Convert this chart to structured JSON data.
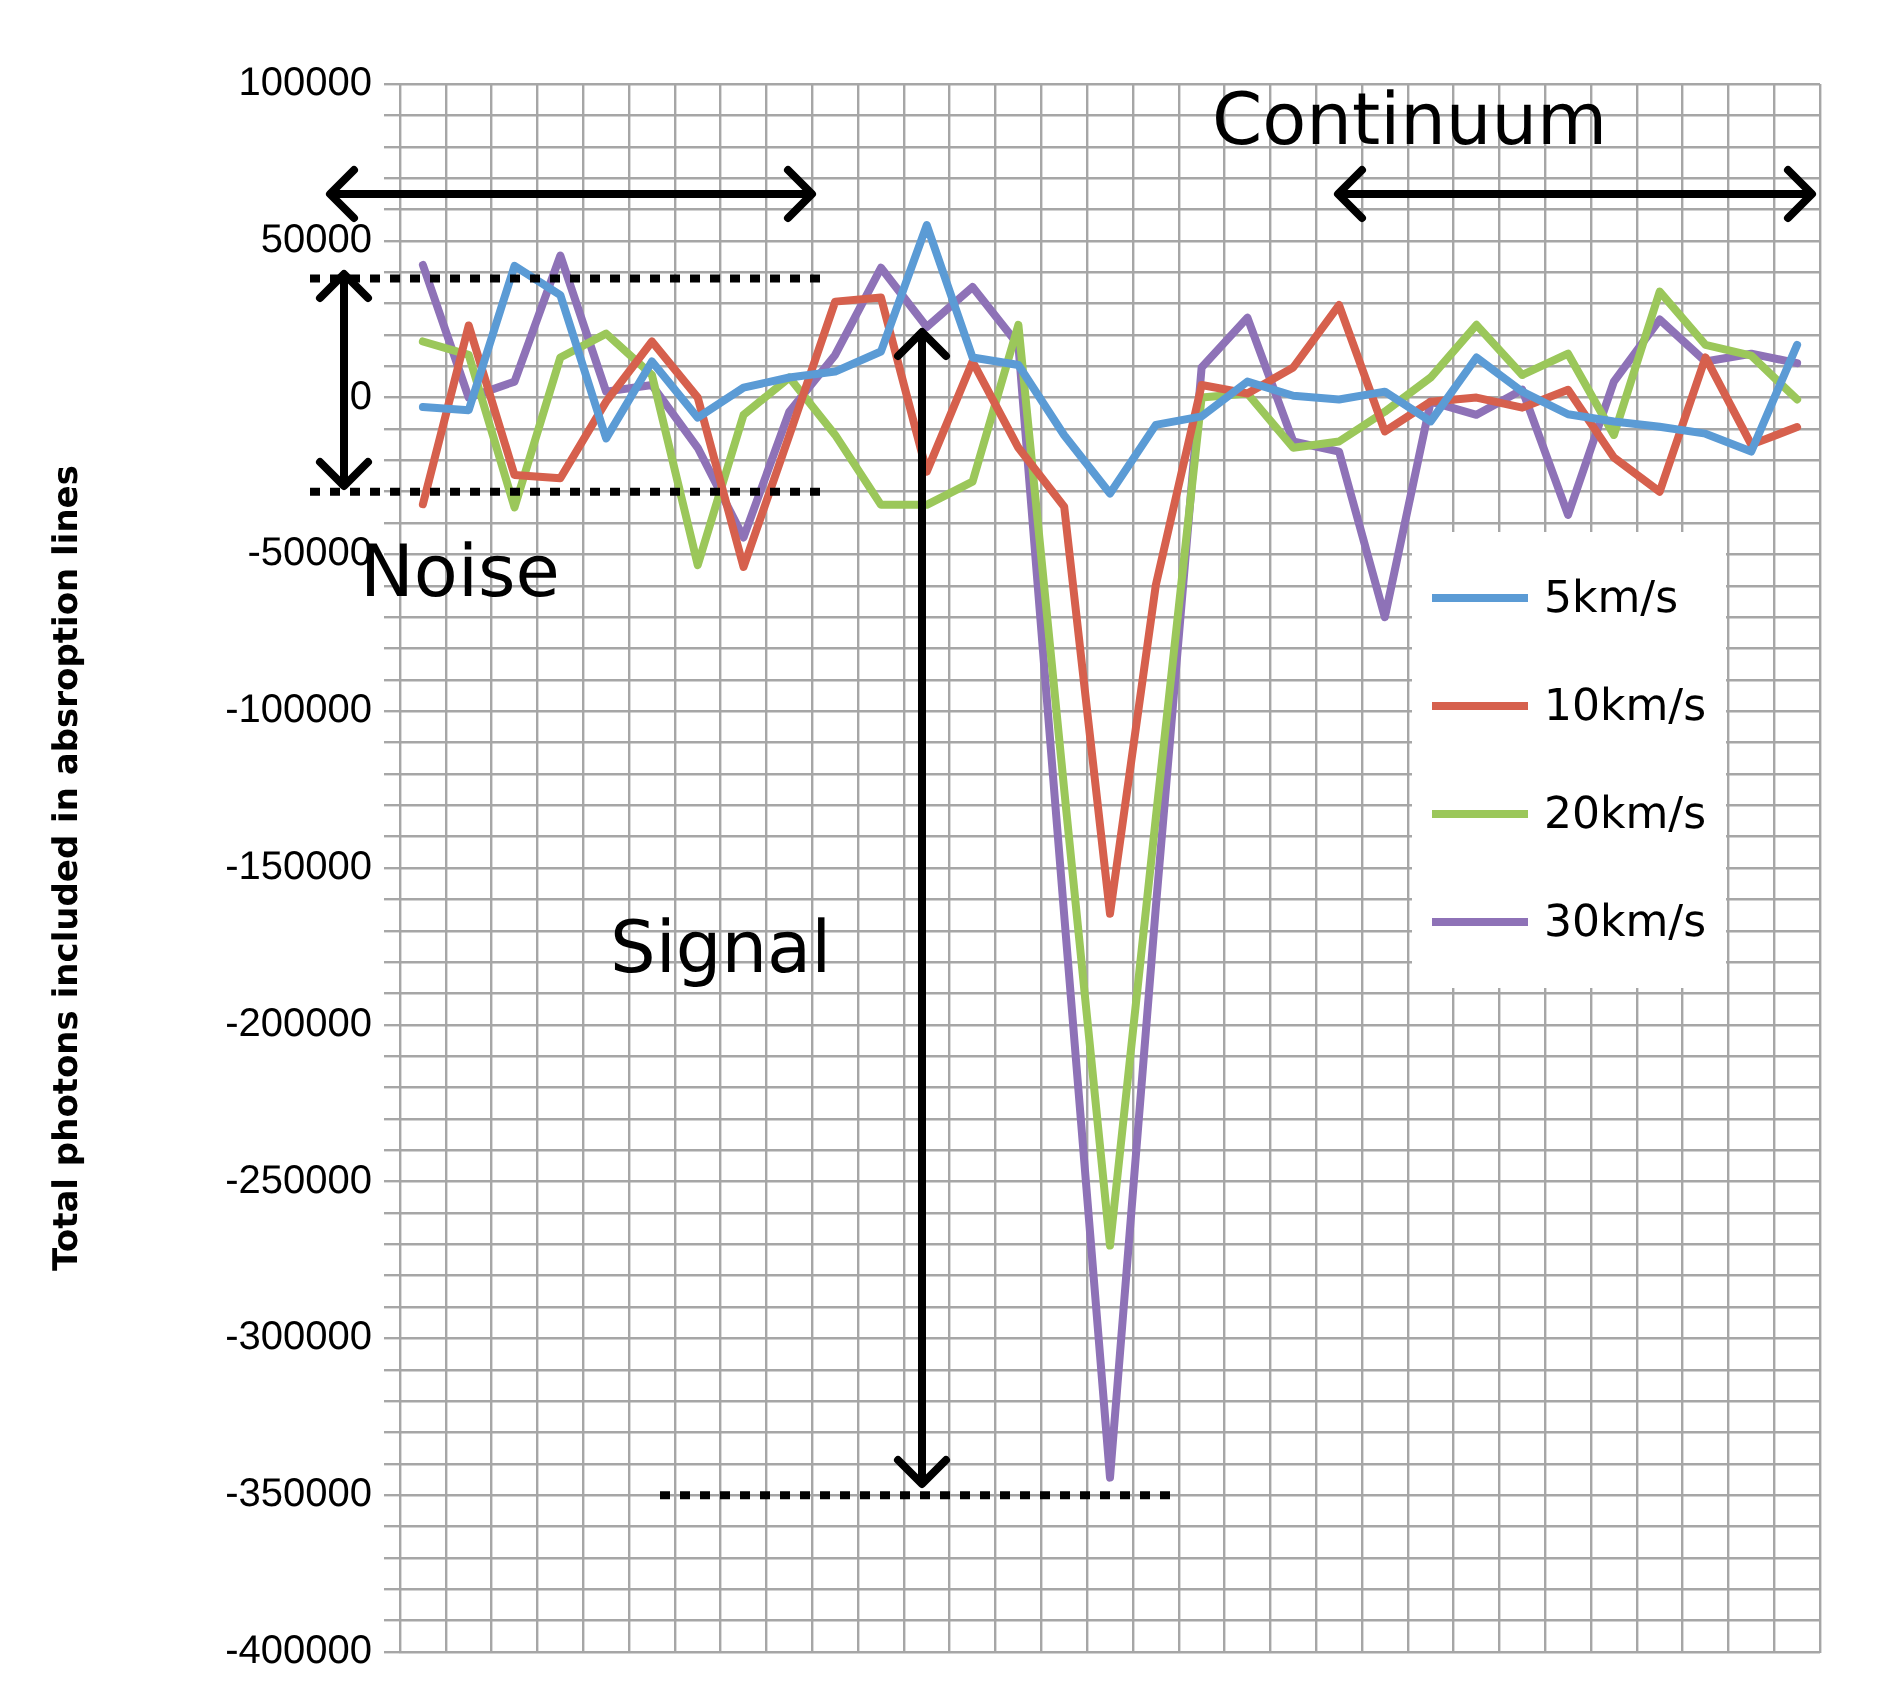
{
  "chart_data": {
    "type": "line",
    "ylabel": "Total photons included in absroption lines",
    "categories": [
      null,
      null,
      null,
      null,
      null,
      null,
      null,
      null,
      null,
      null,
      null,
      null,
      null,
      null,
      null,
      null,
      null,
      null,
      null,
      null,
      null,
      null,
      null,
      null,
      null,
      null,
      null,
      null,
      null,
      null,
      null
    ],
    "series": [
      {
        "name": "5km/s",
        "color": "#5b9bd5",
        "values": [
          -3000,
          -4000,
          42000,
          32700,
          -13000,
          11500,
          -6400,
          3200,
          6400,
          8300,
          14700,
          55000,
          12800,
          10400,
          -12000,
          -30600,
          -8700,
          -6000,
          5100,
          600,
          -600,
          1900,
          -7600,
          12800,
          1900,
          -5300,
          -7600,
          -9300,
          -11500,
          -17200,
          16800
        ]
      },
      {
        "name": "10km/s",
        "color": "#d6604d",
        "values": [
          -34000,
          23000,
          -24700,
          -25700,
          -1300,
          17900,
          0,
          -54000,
          -12000,
          30600,
          31900,
          -23600,
          11500,
          -16000,
          -34800,
          -164600,
          -59800,
          4000,
          1300,
          9600,
          29500,
          -10800,
          -1300,
          0,
          -3200,
          2500,
          -19100,
          -30000,
          12800,
          -15000,
          -9400
        ]
      },
      {
        "name": "20km/s",
        "color": "#9bc75a",
        "values": [
          17900,
          13600,
          -35000,
          12800,
          20400,
          7200,
          -53400,
          -5500,
          6400,
          -11900,
          -34200,
          -34200,
          -26800,
          23200,
          -125000,
          -270400,
          -134000,
          0,
          1300,
          -16000,
          -14000,
          -4500,
          6400,
          23200,
          7200,
          14000,
          -11900,
          33800,
          16800,
          13400,
          -600
        ]
      },
      {
        "name": "30km/s",
        "color": "#8e72b7",
        "values": [
          42300,
          0,
          5100,
          45300,
          1900,
          4000,
          -16000,
          -44600,
          -4500,
          13600,
          41400,
          22500,
          35300,
          16800,
          -165000,
          -344400,
          -162600,
          9600,
          25500,
          -14000,
          -17200,
          -70000,
          -1300,
          -5500,
          2500,
          -37400,
          5100,
          24900,
          11500,
          14000,
          11000
        ]
      }
    ],
    "ylim": [
      -400000,
      100000
    ],
    "yticks": [
      -400000,
      {
        "value": -390000,
        "label": null
      },
      {
        "value": -380000,
        "label": null
      },
      {
        "value": -370000,
        "label": null
      },
      {
        "value": -360000,
        "label": null
      },
      -350000,
      {
        "value": -340000,
        "label": null
      },
      {
        "value": -330000,
        "label": null
      },
      {
        "value": -320000,
        "label": null
      },
      {
        "value": -310000,
        "label": null
      },
      -300000,
      {
        "value": -290000,
        "label": null
      },
      {
        "value": -280000,
        "label": null
      },
      {
        "value": -270000,
        "label": null
      },
      {
        "value": -260000,
        "label": null
      },
      -250000,
      {
        "value": -240000,
        "label": null
      },
      {
        "value": -230000,
        "label": null
      },
      {
        "value": -220000,
        "label": null
      },
      {
        "value": -210000,
        "label": null
      },
      -200000,
      {
        "value": -190000,
        "label": null
      },
      {
        "value": -180000,
        "label": null
      },
      {
        "value": -170000,
        "label": null
      },
      {
        "value": -160000,
        "label": null
      },
      -150000,
      {
        "value": -140000,
        "label": null
      },
      {
        "value": -130000,
        "label": null
      },
      {
        "value": -120000,
        "label": null
      },
      {
        "value": -110000,
        "label": null
      },
      -100000,
      {
        "value": -90000,
        "label": null
      },
      {
        "value": -80000,
        "label": null
      },
      {
        "value": -70000,
        "label": null
      },
      {
        "value": -60000,
        "label": null
      },
      -50000,
      {
        "value": -40000,
        "label": null
      },
      {
        "value": -30000,
        "label": null
      },
      {
        "value": -20000,
        "label": null
      },
      {
        "value": -10000,
        "label": null
      },
      0,
      {
        "value": 10000,
        "label": null
      },
      {
        "value": 20000,
        "label": null
      },
      {
        "value": 30000,
        "label": null
      },
      {
        "value": 40000,
        "label": null
      },
      50000,
      {
        "value": 60000,
        "label": null
      },
      {
        "value": 70000,
        "label": null
      },
      {
        "value": 80000,
        "label": null
      },
      {
        "value": 90000,
        "label": null
      },
      100000
    ],
    "ref_lines": [
      {
        "axis": "y",
        "value": 38000,
        "color": "#000000",
        "line_style": "dotted"
      },
      {
        "axis": "y",
        "value": -30000,
        "color": "#000000",
        "line_style": "dotted"
      },
      {
        "axis": "y",
        "value": -350000,
        "color": "#000000",
        "line_style": "dotted"
      }
    ],
    "grid": true,
    "legend": "right",
    "marker": "none",
    "annotations": [
      "Noise",
      "Signal",
      "Continuum"
    ]
  }
}
